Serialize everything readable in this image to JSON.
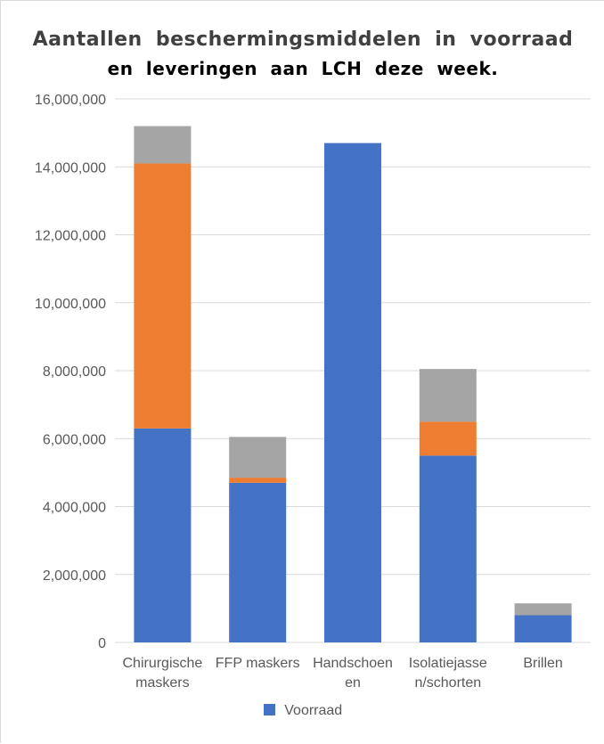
{
  "chart_data": {
    "type": "bar",
    "stacked": true,
    "title": "Aantallen beschermingsmiddelen in voorraad",
    "subtitle": "en leveringen aan LCH deze week.",
    "xlabel": "",
    "ylabel": "",
    "ylim": [
      0,
      16000000
    ],
    "yticks": [
      "0",
      "2,000,000",
      "4,000,000",
      "6,000,000",
      "8,000,000",
      "10,000,000",
      "12,000,000",
      "14,000,000",
      "16,000,000"
    ],
    "categories": [
      [
        "Chirurgische",
        "maskers"
      ],
      [
        "FFP maskers"
      ],
      [
        "Handschoen",
        "en"
      ],
      [
        "Isolatiejasse",
        "n/schorten"
      ],
      [
        "Brillen"
      ]
    ],
    "series": [
      {
        "name": "Voorraad",
        "color": "#4472c4",
        "values": [
          6300000,
          4700000,
          14700000,
          5500000,
          800000
        ]
      },
      {
        "name": "",
        "color": "#ed7d31",
        "values": [
          7800000,
          150000,
          0,
          1000000,
          0
        ]
      },
      {
        "name": "",
        "color": "#a5a5a5",
        "values": [
          1100000,
          1200000,
          0,
          1550000,
          350000
        ]
      }
    ],
    "grid": true,
    "legend_position": "bottom"
  }
}
